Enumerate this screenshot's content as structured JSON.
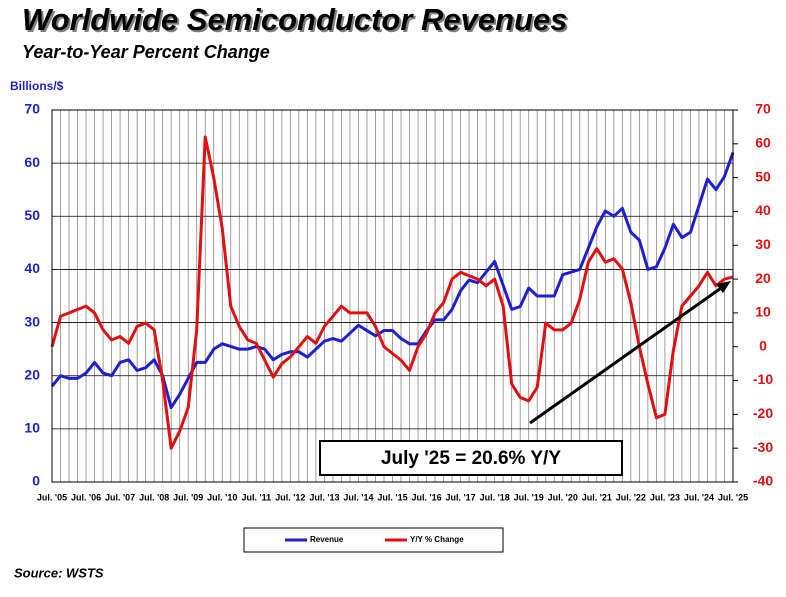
{
  "chart_data": {
    "type": "line",
    "title": "Worldwide Semiconductor Revenues",
    "subtitle": "Year-to-Year Percent Change",
    "y_label": "Billions/$",
    "annotation": "July '25 = 20.6% Y/Y",
    "source": "Source: WSTS",
    "categories": [
      "Jul. '05",
      null,
      null,
      null,
      "Jul. '06",
      null,
      null,
      null,
      "Jul. '07",
      null,
      null,
      null,
      "Jul. '08",
      null,
      null,
      null,
      "Jul. '09",
      null,
      null,
      null,
      "Jul. '10",
      null,
      null,
      null,
      "Jul. '11",
      null,
      null,
      null,
      "Jul. '12",
      null,
      null,
      null,
      "Jul. '13",
      null,
      null,
      null,
      "Jul. '14",
      null,
      null,
      null,
      "Jul. '15",
      null,
      null,
      null,
      "Jul. '16",
      null,
      null,
      null,
      "Jul. '17",
      null,
      null,
      null,
      "Jul. '18",
      null,
      null,
      null,
      "Jul. '19",
      null,
      null,
      null,
      "Jul. '20",
      null,
      null,
      null,
      "Jul. '21",
      null,
      null,
      null,
      "Jul. '22",
      null,
      null,
      null,
      "Jul. '23",
      null,
      null,
      null,
      "Jul. '24",
      null,
      null,
      null,
      "Jul. '25"
    ],
    "series": [
      {
        "name": "Revenue",
        "color": "#1f1fd0",
        "values": [
          18,
          20,
          19.5,
          19.5,
          20.5,
          22.5,
          20.5,
          20,
          22.5,
          23,
          21,
          21.5,
          23,
          20,
          14,
          16.5,
          19.5,
          22.5,
          22.5,
          25,
          26,
          25.5,
          25,
          25,
          25.5,
          25,
          23,
          24,
          24.5,
          24.5,
          23.5,
          25,
          26.5,
          27,
          26.5,
          28,
          29.5,
          28.5,
          27.5,
          28.5,
          28.5,
          27,
          26,
          26,
          28.5,
          30.5,
          30.5,
          32.5,
          36,
          38,
          37.5,
          39.5,
          41.5,
          37,
          32.5,
          33,
          36.5,
          35,
          35,
          35,
          39,
          39.5,
          40,
          44,
          48,
          51,
          50,
          51.5,
          47,
          45.5,
          40,
          40.5,
          44,
          48.5,
          46,
          47,
          52,
          57,
          55,
          57.5,
          62
        ]
      },
      {
        "name": "Y/Y % Change",
        "color": "#e01010",
        "axis": "y2",
        "values": [
          0,
          9,
          10,
          11,
          12,
          10,
          5,
          2,
          3,
          1,
          6,
          7,
          5,
          -10,
          -30,
          -25,
          -18,
          5,
          62,
          50,
          35,
          12,
          6,
          2,
          1,
          -4,
          -9,
          -5,
          -3,
          0,
          3,
          1,
          6,
          9,
          12,
          10,
          10,
          10,
          6,
          0,
          -2,
          -4,
          -7,
          0,
          4,
          10,
          13,
          20,
          22,
          21,
          20,
          18,
          20,
          12,
          -11,
          -15,
          -16,
          -12,
          7,
          5,
          5,
          7,
          14,
          25,
          29,
          25,
          26,
          23,
          13,
          0,
          -11,
          -21,
          -20,
          -1,
          12,
          15,
          18,
          22,
          18,
          20,
          20.6
        ]
      }
    ],
    "ylim": [
      0,
      70
    ],
    "yticks": [
      0,
      10,
      20,
      30,
      40,
      50,
      60,
      70
    ],
    "y2lim": [
      -40,
      70
    ],
    "y2ticks": [
      -40,
      -30,
      -20,
      -10,
      0,
      10,
      20,
      30,
      40,
      50,
      60,
      70
    ],
    "grid": true
  }
}
